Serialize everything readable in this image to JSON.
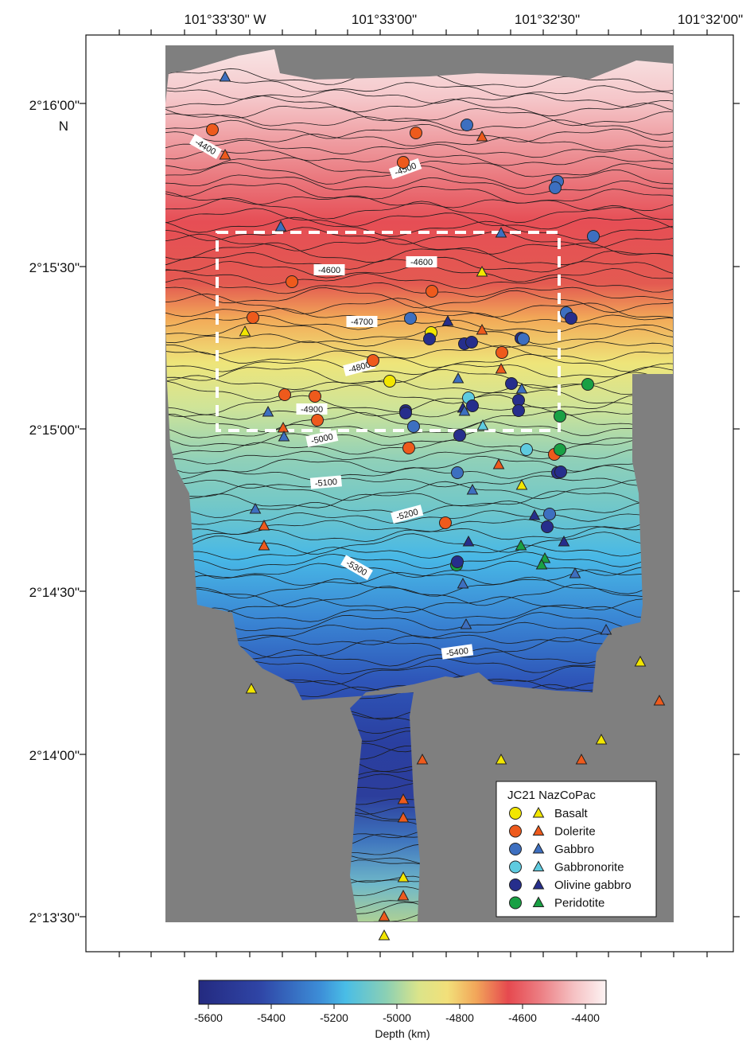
{
  "map": {
    "lon_labels": [
      "101°33'30\" W",
      "101°33'00\"",
      "101°32'30\"",
      "101°32'00\""
    ],
    "lat_labels": [
      "2°16'00\"",
      "N",
      "2°15'30\"",
      "2°15'00\"",
      "2°14'30\"",
      "2°14'00\"",
      "2°13'30\""
    ],
    "contour_labels": [
      "-4400",
      "-4500",
      "-4600",
      "-4600",
      "-4700",
      "-4800",
      "-4900",
      "-5000",
      "-5100",
      "-5200",
      "-5300",
      "-5400"
    ]
  },
  "legend": {
    "title": "JC21 NazCoPac",
    "items": [
      {
        "label": "Basalt",
        "color": "#f2e600"
      },
      {
        "label": "Dolerite",
        "color": "#ee5a1c"
      },
      {
        "label": "Gabbro",
        "color": "#3d6fc0"
      },
      {
        "label": "Gabbronorite",
        "color": "#5ecbe0"
      },
      {
        "label": "Olivine gabbro",
        "color": "#262e8c"
      },
      {
        "label": "Peridotite",
        "color": "#19a044"
      }
    ]
  },
  "colorbar": {
    "ticks": [
      "-5600",
      "-5400",
      "-5200",
      "-5000",
      "-4800",
      "-4600",
      "-4400"
    ],
    "label": "Depth (km)",
    "range": [
      -5600,
      -4300
    ]
  },
  "samples": {
    "circles": [
      {
        "rock": "Dolerite",
        "depth": -4400
      },
      {
        "rock": "Gabbro",
        "depth": -4450
      },
      {
        "rock": "Dolerite",
        "depth": -4450
      },
      {
        "rock": "Dolerite",
        "depth": -4500
      },
      {
        "rock": "Gabbro",
        "depth": -4550
      },
      {
        "rock": "Gabbro",
        "depth": -4550
      },
      {
        "rock": "Gabbro",
        "depth": -4600
      },
      {
        "rock": "Dolerite",
        "depth": -4650
      },
      {
        "rock": "Dolerite",
        "depth": -4650
      },
      {
        "rock": "Dolerite",
        "depth": -4700
      },
      {
        "rock": "Gabbro",
        "depth": -4700
      },
      {
        "rock": "Gabbro",
        "depth": -4700
      },
      {
        "rock": "Olivine gabbro",
        "depth": -4700
      },
      {
        "rock": "Basalt",
        "depth": -4750
      },
      {
        "rock": "Olivine gabbro",
        "depth": -4750
      },
      {
        "rock": "Olivine gabbro",
        "depth": -4750
      },
      {
        "rock": "Olivine gabbro",
        "depth": -4750
      },
      {
        "rock": "Olivine gabbro",
        "depth": -4750
      },
      {
        "rock": "Gabbro",
        "depth": -4750
      },
      {
        "rock": "Dolerite",
        "depth": -4750
      },
      {
        "rock": "Dolerite",
        "depth": -4800
      },
      {
        "rock": "Basalt",
        "depth": -4850
      },
      {
        "rock": "Olivine gabbro",
        "depth": -4850
      },
      {
        "rock": "Peridotite",
        "depth": -4850
      },
      {
        "rock": "Dolerite",
        "depth": -4900
      },
      {
        "rock": "Dolerite",
        "depth": -4900
      },
      {
        "rock": "Gabbronorite",
        "depth": -4900
      },
      {
        "rock": "Olivine gabbro",
        "depth": -4900
      },
      {
        "rock": "Olivine gabbro",
        "depth": -4950
      },
      {
        "rock": "Gabbro",
        "depth": -4950
      },
      {
        "rock": "Dolerite",
        "depth": -4950
      },
      {
        "rock": "Olivine gabbro",
        "depth": -4950
      },
      {
        "rock": "Olivine gabbro",
        "depth": -4950
      },
      {
        "rock": "Olivine gabbro",
        "depth": -4950
      },
      {
        "rock": "Olivine gabbro",
        "depth": -4950
      },
      {
        "rock": "Peridotite",
        "depth": -4950
      },
      {
        "rock": "Gabbro",
        "depth": -5000
      },
      {
        "rock": "Olivine gabbro",
        "depth": -5000
      },
      {
        "rock": "Dolerite",
        "depth": -5050
      },
      {
        "rock": "Gabbronorite",
        "depth": -5050
      },
      {
        "rock": "Dolerite",
        "depth": -5050
      },
      {
        "rock": "Peridotite",
        "depth": -5050
      },
      {
        "rock": "Gabbro",
        "depth": -5100
      },
      {
        "rock": "Olivine gabbro",
        "depth": -5100
      },
      {
        "rock": "Dolerite",
        "depth": -5200
      },
      {
        "rock": "Peridotite",
        "depth": -5200
      },
      {
        "rock": "Olivine gabbro",
        "depth": -5200
      },
      {
        "rock": "Olivine gabbro",
        "depth": -5300
      }
    ]
  }
}
